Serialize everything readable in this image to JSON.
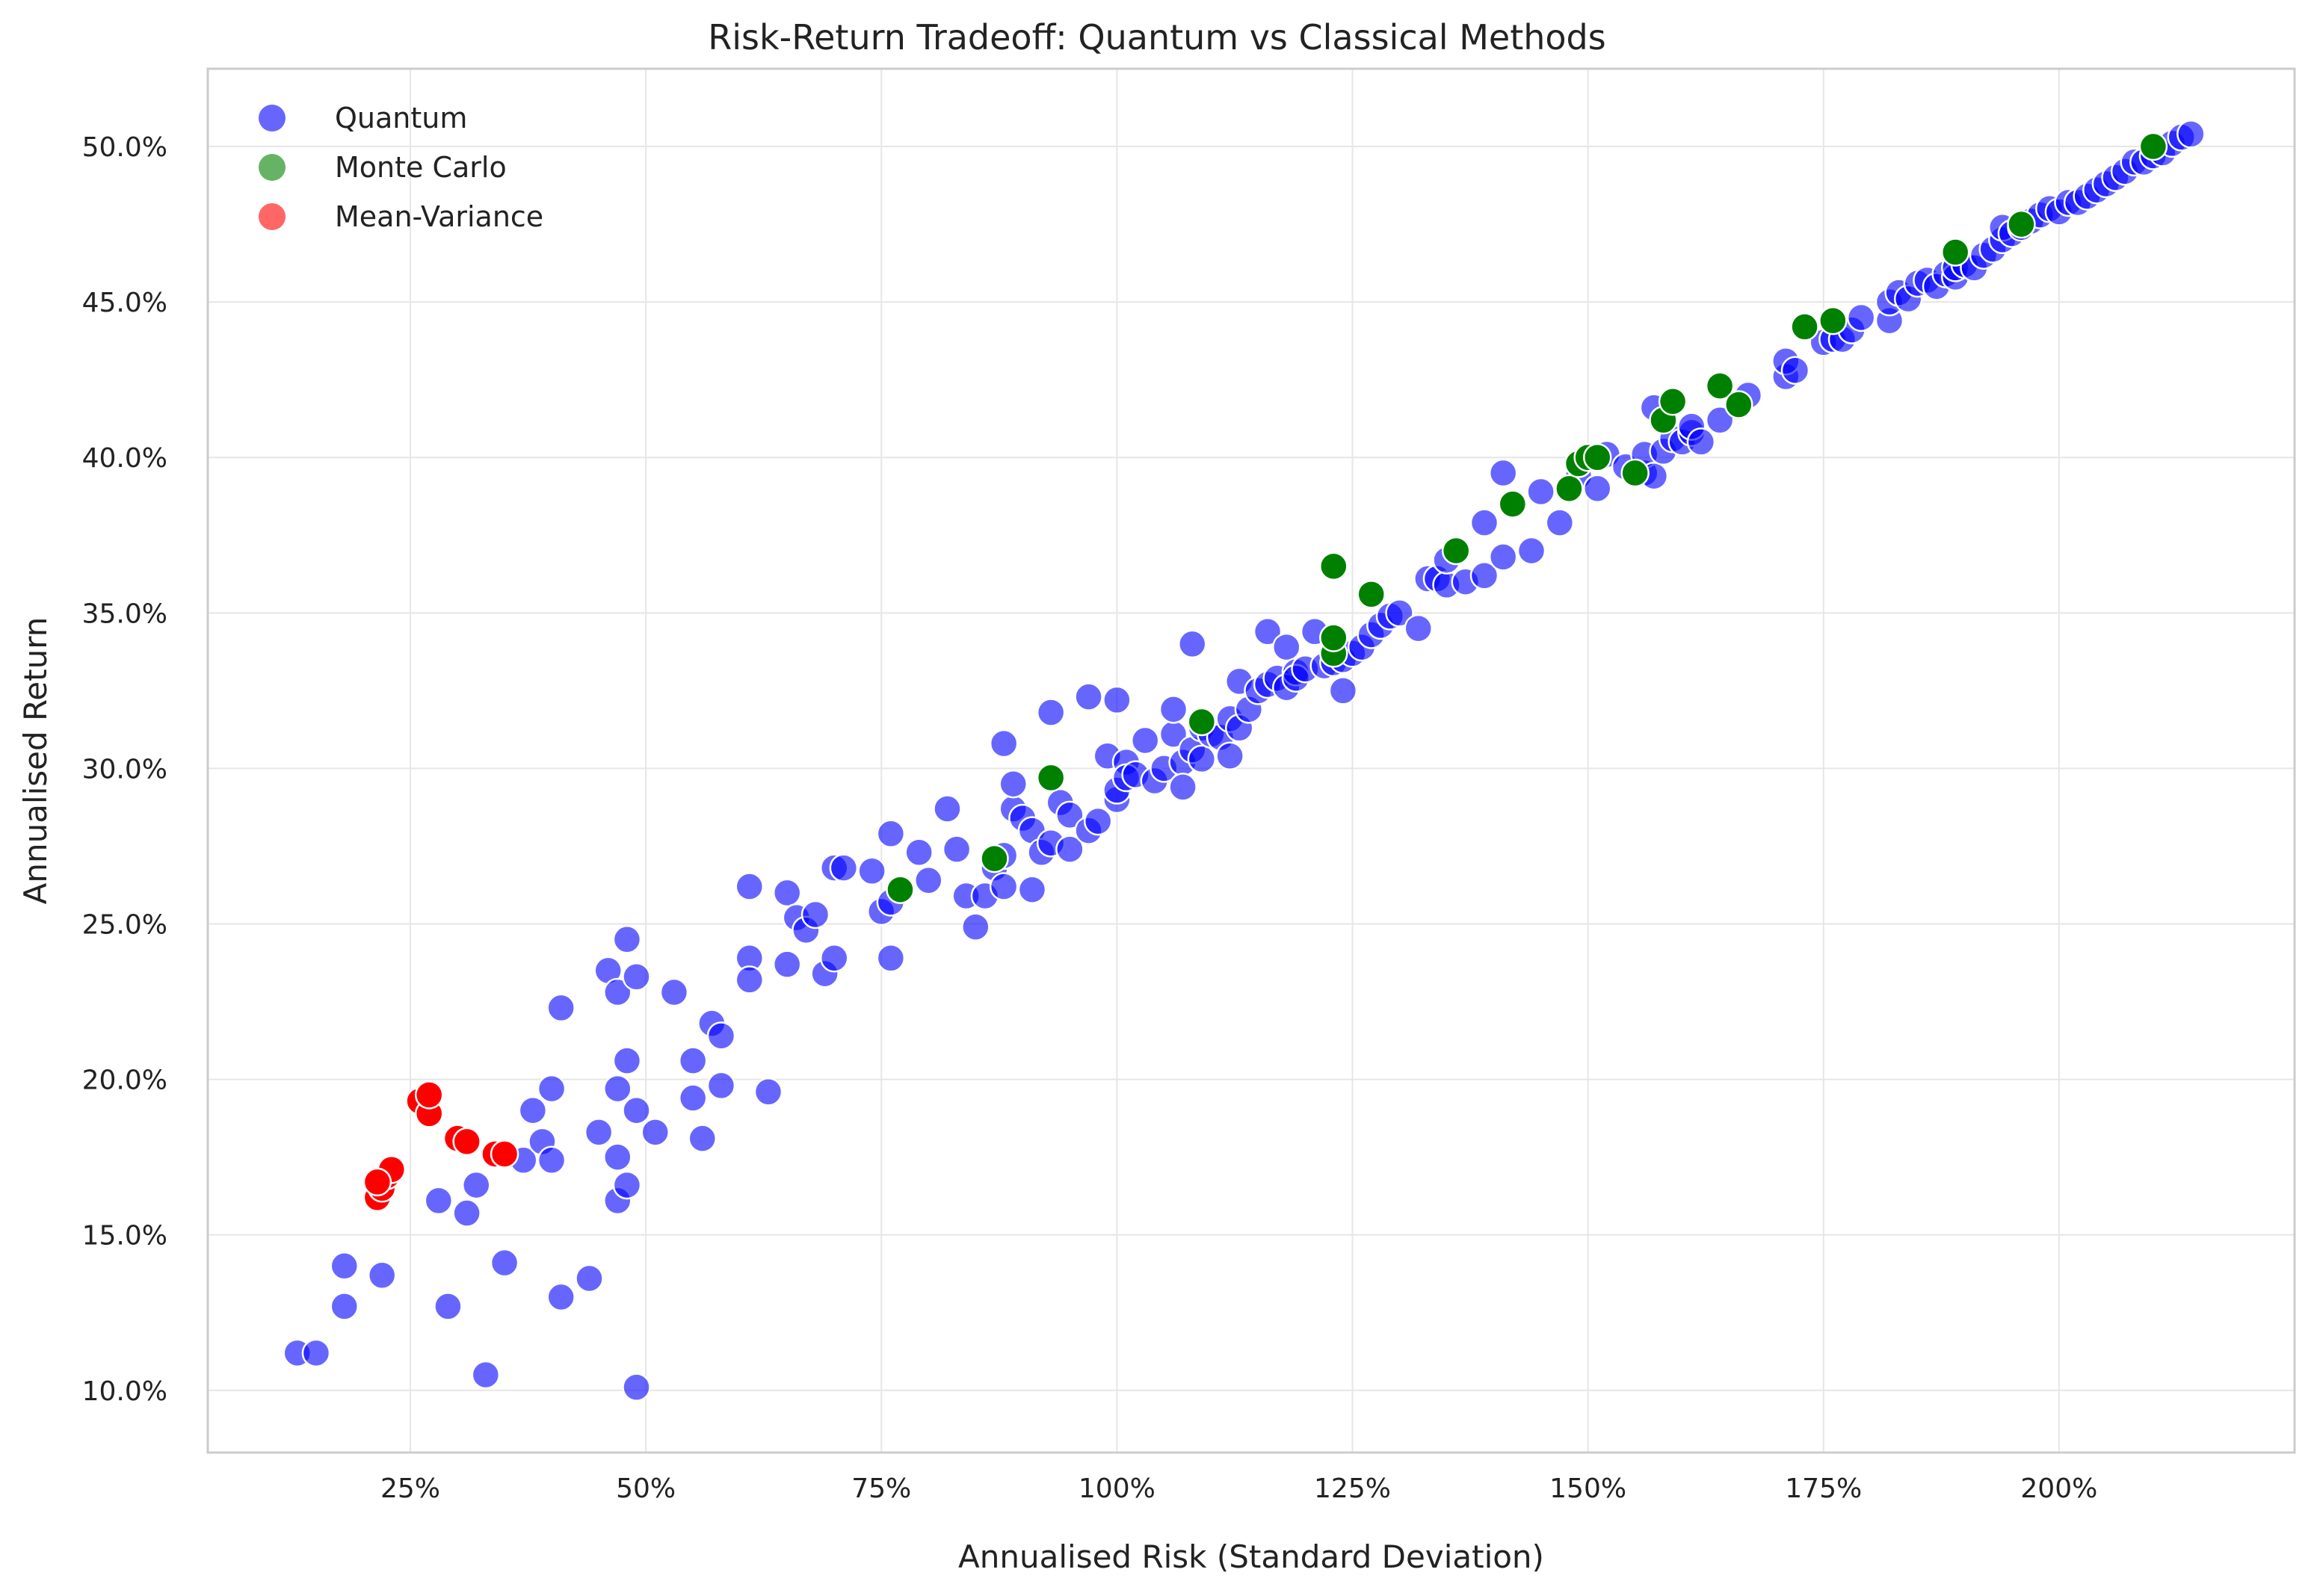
{
  "chart_data": {
    "type": "scatter",
    "title": "Risk-Return Tradeoff: Quantum vs Classical Methods",
    "xlabel": "Annualised Risk (Standard Deviation)",
    "ylabel": "Annualised Return",
    "xlim": [
      0.035,
      2.25
    ],
    "ylim": [
      0.08,
      0.525
    ],
    "xticks": [
      0.25,
      0.5,
      0.75,
      1.0,
      1.25,
      1.5,
      1.75,
      2.0
    ],
    "xtick_labels": [
      "25%",
      "50%",
      "75%",
      "100%",
      "125%",
      "150%",
      "175%",
      "200%"
    ],
    "yticks": [
      0.1,
      0.15,
      0.2,
      0.25,
      0.3,
      0.35,
      0.4,
      0.45,
      0.5
    ],
    "ytick_labels": [
      "10.0%",
      "15.0%",
      "20.0%",
      "25.0%",
      "30.0%",
      "35.0%",
      "40.0%",
      "45.0%",
      "50.0%"
    ],
    "grid": true,
    "legend_position": "top-left",
    "series": [
      {
        "name": "Quantum",
        "color": "#0000ff",
        "opacity": 0.6,
        "points": [
          [
            0.13,
            0.112
          ],
          [
            0.15,
            0.112
          ],
          [
            0.18,
            0.14
          ],
          [
            0.18,
            0.127
          ],
          [
            0.22,
            0.137
          ],
          [
            0.28,
            0.161
          ],
          [
            0.29,
            0.127
          ],
          [
            0.31,
            0.157
          ],
          [
            0.32,
            0.166
          ],
          [
            0.33,
            0.105
          ],
          [
            0.35,
            0.141
          ],
          [
            0.37,
            0.174
          ],
          [
            0.38,
            0.19
          ],
          [
            0.39,
            0.18
          ],
          [
            0.4,
            0.174
          ],
          [
            0.4,
            0.197
          ],
          [
            0.41,
            0.223
          ],
          [
            0.41,
            0.13
          ],
          [
            0.44,
            0.136
          ],
          [
            0.45,
            0.183
          ],
          [
            0.46,
            0.235
          ],
          [
            0.47,
            0.175
          ],
          [
            0.47,
            0.161
          ],
          [
            0.47,
            0.197
          ],
          [
            0.47,
            0.228
          ],
          [
            0.48,
            0.245
          ],
          [
            0.48,
            0.206
          ],
          [
            0.48,
            0.166
          ],
          [
            0.49,
            0.19
          ],
          [
            0.49,
            0.233
          ],
          [
            0.49,
            0.101
          ],
          [
            0.51,
            0.183
          ],
          [
            0.53,
            0.228
          ],
          [
            0.55,
            0.206
          ],
          [
            0.55,
            0.194
          ],
          [
            0.56,
            0.181
          ],
          [
            0.57,
            0.218
          ],
          [
            0.58,
            0.214
          ],
          [
            0.58,
            0.198
          ],
          [
            0.61,
            0.239
          ],
          [
            0.61,
            0.262
          ],
          [
            0.61,
            0.232
          ],
          [
            0.63,
            0.196
          ],
          [
            0.65,
            0.237
          ],
          [
            0.65,
            0.26
          ],
          [
            0.66,
            0.252
          ],
          [
            0.67,
            0.248
          ],
          [
            0.68,
            0.253
          ],
          [
            0.69,
            0.234
          ],
          [
            0.7,
            0.239
          ],
          [
            0.7,
            0.268
          ],
          [
            0.71,
            0.268
          ],
          [
            0.74,
            0.267
          ],
          [
            0.75,
            0.254
          ],
          [
            0.76,
            0.257
          ],
          [
            0.76,
            0.239
          ],
          [
            0.76,
            0.279
          ],
          [
            0.79,
            0.273
          ],
          [
            0.8,
            0.264
          ],
          [
            0.82,
            0.287
          ],
          [
            0.83,
            0.274
          ],
          [
            0.84,
            0.259
          ],
          [
            0.85,
            0.249
          ],
          [
            0.86,
            0.259
          ],
          [
            0.87,
            0.268
          ],
          [
            0.88,
            0.272
          ],
          [
            0.88,
            0.262
          ],
          [
            0.88,
            0.308
          ],
          [
            0.89,
            0.287
          ],
          [
            0.89,
            0.295
          ],
          [
            0.9,
            0.284
          ],
          [
            0.91,
            0.28
          ],
          [
            0.91,
            0.261
          ],
          [
            0.92,
            0.273
          ],
          [
            0.93,
            0.276
          ],
          [
            0.93,
            0.318
          ],
          [
            0.94,
            0.289
          ],
          [
            0.95,
            0.274
          ],
          [
            0.95,
            0.285
          ],
          [
            0.97,
            0.28
          ],
          [
            0.97,
            0.323
          ],
          [
            0.98,
            0.283
          ],
          [
            0.99,
            0.304
          ],
          [
            1.0,
            0.322
          ],
          [
            1.0,
            0.29
          ],
          [
            1.0,
            0.293
          ],
          [
            1.01,
            0.302
          ],
          [
            1.01,
            0.297
          ],
          [
            1.02,
            0.298
          ],
          [
            1.03,
            0.309
          ],
          [
            1.04,
            0.296
          ],
          [
            1.05,
            0.3
          ],
          [
            1.06,
            0.311
          ],
          [
            1.06,
            0.319
          ],
          [
            1.07,
            0.302
          ],
          [
            1.07,
            0.294
          ],
          [
            1.08,
            0.34
          ],
          [
            1.08,
            0.306
          ],
          [
            1.09,
            0.303
          ],
          [
            1.09,
            0.313
          ],
          [
            1.1,
            0.311
          ],
          [
            1.11,
            0.31
          ],
          [
            1.12,
            0.304
          ],
          [
            1.12,
            0.316
          ],
          [
            1.13,
            0.328
          ],
          [
            1.13,
            0.313
          ],
          [
            1.14,
            0.319
          ],
          [
            1.15,
            0.325
          ],
          [
            1.16,
            0.327
          ],
          [
            1.16,
            0.344
          ],
          [
            1.17,
            0.329
          ],
          [
            1.18,
            0.339
          ],
          [
            1.18,
            0.326
          ],
          [
            1.19,
            0.331
          ],
          [
            1.19,
            0.329
          ],
          [
            1.2,
            0.332
          ],
          [
            1.21,
            0.344
          ],
          [
            1.22,
            0.333
          ],
          [
            1.23,
            0.334
          ],
          [
            1.24,
            0.325
          ],
          [
            1.24,
            0.335
          ],
          [
            1.25,
            0.337
          ],
          [
            1.26,
            0.339
          ],
          [
            1.27,
            0.343
          ],
          [
            1.28,
            0.346
          ],
          [
            1.29,
            0.349
          ],
          [
            1.3,
            0.35
          ],
          [
            1.32,
            0.345
          ],
          [
            1.33,
            0.361
          ],
          [
            1.34,
            0.361
          ],
          [
            1.35,
            0.359
          ],
          [
            1.35,
            0.367
          ],
          [
            1.37,
            0.36
          ],
          [
            1.39,
            0.362
          ],
          [
            1.39,
            0.379
          ],
          [
            1.41,
            0.368
          ],
          [
            1.41,
            0.395
          ],
          [
            1.44,
            0.37
          ],
          [
            1.45,
            0.389
          ],
          [
            1.47,
            0.379
          ],
          [
            1.48,
            0.39
          ],
          [
            1.49,
            0.394
          ],
          [
            1.51,
            0.39
          ],
          [
            1.52,
            0.401
          ],
          [
            1.54,
            0.397
          ],
          [
            1.56,
            0.395
          ],
          [
            1.56,
            0.401
          ],
          [
            1.57,
            0.416
          ],
          [
            1.57,
            0.394
          ],
          [
            1.58,
            0.402
          ],
          [
            1.59,
            0.406
          ],
          [
            1.6,
            0.405
          ],
          [
            1.61,
            0.408
          ],
          [
            1.61,
            0.41
          ],
          [
            1.62,
            0.405
          ],
          [
            1.64,
            0.412
          ],
          [
            1.66,
            0.417
          ],
          [
            1.67,
            0.42
          ],
          [
            1.71,
            0.426
          ],
          [
            1.71,
            0.431
          ],
          [
            1.72,
            0.428
          ],
          [
            1.75,
            0.437
          ],
          [
            1.76,
            0.438
          ],
          [
            1.77,
            0.438
          ],
          [
            1.78,
            0.441
          ],
          [
            1.79,
            0.445
          ],
          [
            1.82,
            0.444
          ],
          [
            1.82,
            0.45
          ],
          [
            1.83,
            0.453
          ],
          [
            1.84,
            0.451
          ],
          [
            1.85,
            0.456
          ],
          [
            1.86,
            0.457
          ],
          [
            1.87,
            0.455
          ],
          [
            1.88,
            0.459
          ],
          [
            1.89,
            0.458
          ],
          [
            1.89,
            0.461
          ],
          [
            1.9,
            0.462
          ],
          [
            1.91,
            0.461
          ],
          [
            1.92,
            0.465
          ],
          [
            1.93,
            0.467
          ],
          [
            1.94,
            0.47
          ],
          [
            1.94,
            0.474
          ],
          [
            1.95,
            0.472
          ],
          [
            1.96,
            0.474
          ],
          [
            1.97,
            0.476
          ],
          [
            1.98,
            0.478
          ],
          [
            1.99,
            0.48
          ],
          [
            2.0,
            0.479
          ],
          [
            2.01,
            0.482
          ],
          [
            2.02,
            0.482
          ],
          [
            2.03,
            0.484
          ],
          [
            2.04,
            0.486
          ],
          [
            2.05,
            0.488
          ],
          [
            2.06,
            0.49
          ],
          [
            2.07,
            0.492
          ],
          [
            2.08,
            0.495
          ],
          [
            2.09,
            0.495
          ],
          [
            2.1,
            0.497
          ],
          [
            2.11,
            0.498
          ],
          [
            2.12,
            0.501
          ],
          [
            2.13,
            0.503
          ],
          [
            2.14,
            0.504
          ]
        ]
      },
      {
        "name": "Monte Carlo",
        "color": "#008000",
        "opacity": 1.0,
        "points": [
          [
            0.77,
            0.261
          ],
          [
            0.87,
            0.271
          ],
          [
            0.93,
            0.297
          ],
          [
            1.09,
            0.315
          ],
          [
            1.23,
            0.337
          ],
          [
            1.23,
            0.342
          ],
          [
            1.23,
            0.365
          ],
          [
            1.27,
            0.356
          ],
          [
            1.36,
            0.37
          ],
          [
            1.42,
            0.385
          ],
          [
            1.48,
            0.39
          ],
          [
            1.49,
            0.398
          ],
          [
            1.5,
            0.4
          ],
          [
            1.51,
            0.4
          ],
          [
            1.55,
            0.395
          ],
          [
            1.58,
            0.412
          ],
          [
            1.59,
            0.418
          ],
          [
            1.64,
            0.423
          ],
          [
            1.66,
            0.417
          ],
          [
            1.73,
            0.442
          ],
          [
            1.76,
            0.444
          ],
          [
            1.89,
            0.466
          ],
          [
            1.96,
            0.475
          ],
          [
            2.1,
            0.5
          ]
        ]
      },
      {
        "name": "Mean-Variance",
        "color": "#ff0000",
        "opacity": 1.0,
        "points": [
          [
            0.215,
            0.162
          ],
          [
            0.22,
            0.165
          ],
          [
            0.225,
            0.169
          ],
          [
            0.23,
            0.171
          ],
          [
            0.26,
            0.193
          ],
          [
            0.27,
            0.189
          ],
          [
            0.27,
            0.195
          ],
          [
            0.3,
            0.181
          ],
          [
            0.31,
            0.18
          ],
          [
            0.34,
            0.176
          ],
          [
            0.35,
            0.176
          ],
          [
            0.215,
            0.167
          ]
        ]
      }
    ]
  }
}
